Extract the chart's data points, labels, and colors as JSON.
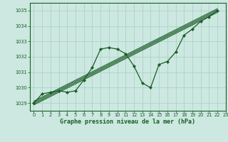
{
  "title": "Graphe pression niveau de la mer (hPa)",
  "xlim": [
    -0.5,
    23
  ],
  "ylim": [
    1028.5,
    1035.5
  ],
  "yticks": [
    1029,
    1030,
    1031,
    1032,
    1033,
    1034,
    1035
  ],
  "xticks": [
    0,
    1,
    2,
    3,
    4,
    5,
    6,
    7,
    8,
    9,
    10,
    11,
    12,
    13,
    14,
    15,
    16,
    17,
    18,
    19,
    20,
    21,
    22,
    23
  ],
  "bg_color": "#cce8e0",
  "grid_color": "#a8cfc4",
  "line_color": "#1a5c28",
  "marker_color": "#1a5c28",
  "main_x": [
    0,
    1,
    2,
    3,
    4,
    5,
    6,
    7,
    8,
    9,
    10,
    11,
    12,
    13,
    14,
    15,
    16,
    17,
    18,
    19,
    20,
    21,
    22
  ],
  "main_y": [
    1029.0,
    1029.6,
    1029.7,
    1029.8,
    1029.7,
    1029.8,
    1030.5,
    1031.3,
    1032.5,
    1032.6,
    1032.5,
    1032.2,
    1031.4,
    1030.3,
    1030.0,
    1031.5,
    1031.7,
    1032.3,
    1033.4,
    1033.8,
    1034.3,
    1034.6,
    1035.0
  ],
  "trend_x": [
    0,
    22
  ],
  "trend_y": [
    1029.0,
    1035.0
  ],
  "trend_offsets": [
    -0.12,
    -0.04,
    0.04,
    0.12
  ],
  "xlabel_fontsize": 6.0,
  "tick_fontsize": 4.8
}
